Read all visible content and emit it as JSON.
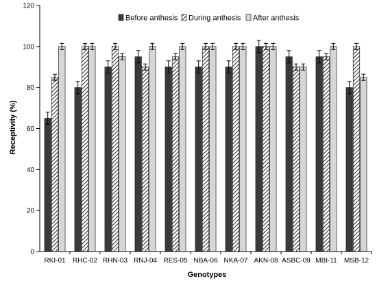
{
  "chart_data": {
    "type": "bar",
    "title": "",
    "xlabel": "Genotypes",
    "ylabel": "Receptivity (%)",
    "ylim": [
      0,
      120
    ],
    "yticks": [
      0,
      20,
      40,
      60,
      80,
      100,
      120
    ],
    "grid": false,
    "legend_position": "top",
    "categories": [
      "RKI-01",
      "RHC-02",
      "RHN-03",
      "RNJ-04",
      "RES-05",
      "NBA-06",
      "NKA-07",
      "AKN-08",
      "ASBC-09",
      "MBI-11",
      "MSB-12"
    ],
    "series": [
      {
        "name": "Before anthesis",
        "pattern": "solid-dark",
        "values": [
          65,
          80,
          90,
          95,
          90,
          90,
          90,
          100,
          95,
          95,
          80
        ],
        "errors": [
          3,
          3,
          3,
          3,
          3,
          3,
          3,
          3,
          3,
          3,
          3
        ]
      },
      {
        "name": "During anthesis",
        "pattern": "hatched",
        "values": [
          85,
          100,
          100,
          90,
          95,
          100,
          100,
          100,
          90,
          95,
          100
        ],
        "errors": [
          1.5,
          1.5,
          1.5,
          1.5,
          1.5,
          1.5,
          1.5,
          1.5,
          1.5,
          1.5,
          1.5
        ]
      },
      {
        "name": "After anthesis",
        "pattern": "light",
        "values": [
          100,
          100,
          95,
          100,
          100,
          100,
          100,
          100,
          90,
          100,
          85
        ],
        "errors": [
          1.5,
          1.5,
          1.5,
          1.5,
          1.5,
          1.5,
          1.5,
          1.5,
          1.5,
          1.5,
          1.5
        ]
      }
    ],
    "colors": {
      "solid_dark": "#3a3a3a",
      "hatch": "#333333",
      "light": "#d6d6d6",
      "axis": "#000000"
    }
  }
}
